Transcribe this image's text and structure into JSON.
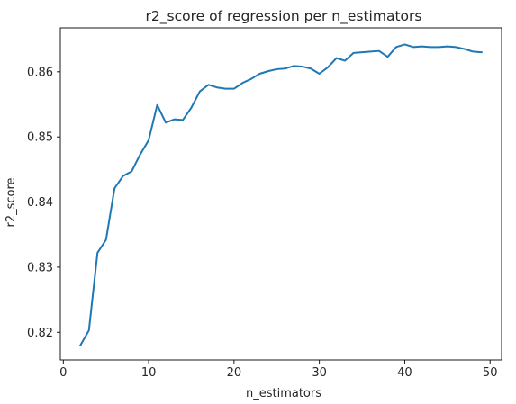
{
  "chart_data": {
    "type": "line",
    "title": "r2_score of regression per n_estimators",
    "xlabel": "n_estimators",
    "ylabel": "r2_score",
    "xlim": [
      -0.35,
      51.35
    ],
    "ylim": [
      0.81575,
      0.86675
    ],
    "xticks": [
      0,
      10,
      20,
      30,
      40,
      50
    ],
    "xtick_labels": [
      "0",
      "10",
      "20",
      "30",
      "40",
      "50"
    ],
    "yticks": [
      0.82,
      0.83,
      0.84,
      0.85,
      0.86
    ],
    "ytick_labels": [
      "0.82",
      "0.83",
      "0.84",
      "0.85",
      "0.86"
    ],
    "grid": false,
    "series": [
      {
        "color": "#1f77b4",
        "x": [
          2,
          3,
          4,
          5,
          6,
          7,
          8,
          9,
          10,
          11,
          12,
          13,
          14,
          15,
          16,
          17,
          18,
          19,
          20,
          21,
          22,
          23,
          24,
          25,
          26,
          27,
          28,
          29,
          30,
          31,
          32,
          33,
          34,
          35,
          36,
          37,
          38,
          39,
          40,
          41,
          42,
          43,
          44,
          45,
          46,
          47,
          48,
          49
        ],
        "values": [
          0.818,
          0.8203,
          0.8322,
          0.8342,
          0.8421,
          0.844,
          0.8447,
          0.8473,
          0.8495,
          0.8549,
          0.8522,
          0.8527,
          0.8526,
          0.8545,
          0.857,
          0.858,
          0.8576,
          0.8574,
          0.8574,
          0.8583,
          0.8589,
          0.8597,
          0.8601,
          0.8604,
          0.8605,
          0.8609,
          0.8608,
          0.8605,
          0.8597,
          0.8607,
          0.8621,
          0.8617,
          0.8629,
          0.863,
          0.8631,
          0.8632,
          0.8623,
          0.8638,
          0.8642,
          0.8638,
          0.8639,
          0.8638,
          0.8638,
          0.8639,
          0.8638,
          0.8635,
          0.8631,
          0.863
        ]
      }
    ]
  }
}
